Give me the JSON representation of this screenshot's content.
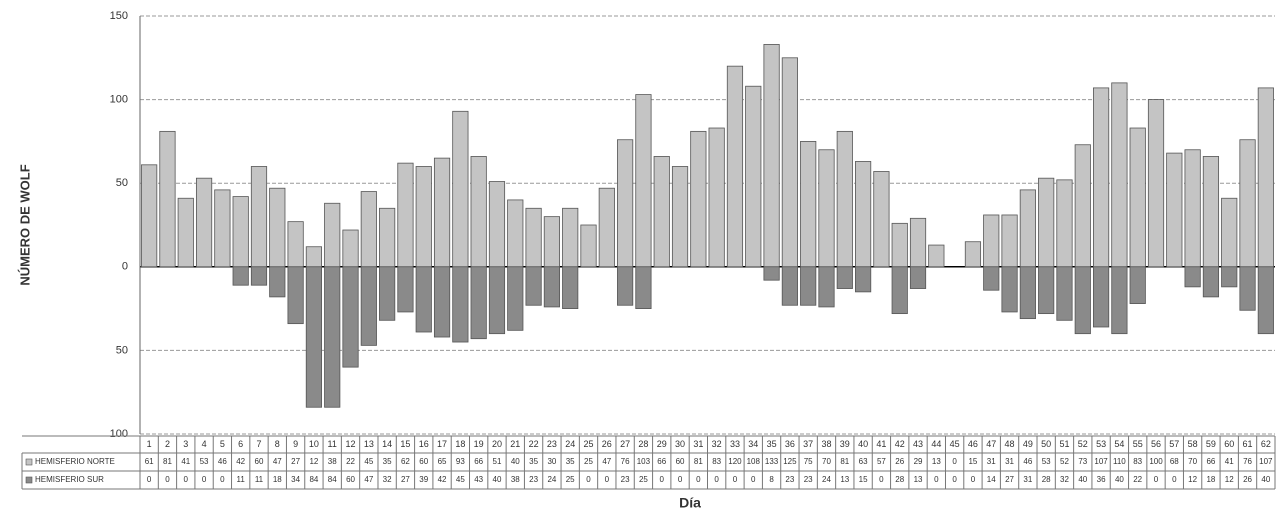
{
  "chart_data": {
    "type": "mirrored-bar",
    "y_label": "NÚMERO DE WOLF",
    "x_label": "Día",
    "categories": [
      1,
      2,
      3,
      4,
      5,
      6,
      7,
      8,
      9,
      10,
      11,
      12,
      13,
      14,
      15,
      16,
      17,
      18,
      19,
      20,
      21,
      22,
      23,
      24,
      25,
      26,
      27,
      28,
      29,
      30,
      31,
      32,
      33,
      34,
      35,
      36,
      37,
      38,
      39,
      40,
      41,
      42,
      43,
      44,
      45,
      46,
      47,
      48,
      49,
      50,
      51,
      52,
      53,
      54,
      55,
      56,
      57,
      58,
      59,
      60,
      61,
      62
    ],
    "series": [
      {
        "name": "HEMISFERIO NORTE",
        "color": "#c4c4c4",
        "direction": "up",
        "values": [
          61,
          81,
          41,
          53,
          46,
          42,
          60,
          47,
          27,
          12,
          38,
          22,
          45,
          35,
          62,
          60,
          65,
          93,
          66,
          51,
          40,
          35,
          30,
          35,
          25,
          47,
          76,
          103,
          66,
          60,
          81,
          83,
          120,
          108,
          133,
          125,
          75,
          70,
          81,
          63,
          57,
          26,
          29,
          13,
          0,
          15,
          31,
          31,
          46,
          53,
          52,
          73,
          107,
          110,
          83,
          100,
          68,
          70,
          66,
          41,
          76,
          107
        ]
      },
      {
        "name": "HEMISFERIO SUR",
        "color": "#8a8a8a",
        "direction": "down",
        "values": [
          0,
          0,
          0,
          0,
          0,
          11,
          11,
          18,
          34,
          84,
          84,
          60,
          47,
          32,
          27,
          39,
          42,
          45,
          43,
          40,
          38,
          23,
          24,
          25,
          0,
          0,
          23,
          25,
          0,
          0,
          0,
          0,
          0,
          0,
          8,
          23,
          23,
          24,
          13,
          15,
          0,
          28,
          13,
          0,
          0,
          0,
          14,
          27,
          31,
          28,
          32,
          40,
          36,
          40,
          22,
          0,
          0,
          12,
          18,
          12,
          26,
          40
        ]
      }
    ],
    "ylim": [
      -100,
      150
    ],
    "yticks": [
      {
        "value": -100,
        "label": "100"
      },
      {
        "value": -50,
        "label": "50"
      },
      0,
      50,
      100,
      150
    ],
    "grid": true
  }
}
